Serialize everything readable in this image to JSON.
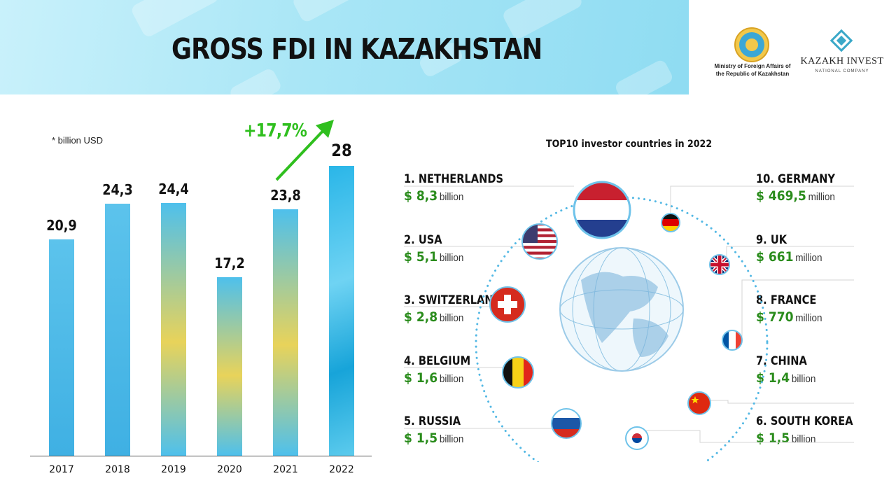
{
  "header": {
    "title": "GROSS FDI IN KAZAKHSTAN",
    "ministry_line1": "Ministry of Foreign Affairs of",
    "ministry_line2": "the Republic of Kazakhstan",
    "partner_name": "KAZAKH INVEST",
    "partner_sub": "NATIONAL COMPANY"
  },
  "chart_data": [
    {
      "type": "bar",
      "unit_note": "* billion USD",
      "categories": [
        "2017",
        "2018",
        "2019",
        "2020",
        "2021",
        "2022"
      ],
      "values": [
        20.9,
        24.3,
        24.4,
        17.2,
        23.8,
        28
      ],
      "value_labels": [
        "20,9",
        "24,3",
        "24,4",
        "17,2",
        "23,8",
        "28"
      ],
      "growth_label": "+17,7%",
      "colors": {
        "bar": "#4fb8e6",
        "growth": "#2fbf1e"
      }
    },
    {
      "type": "table",
      "title": "TOP10 investor countries in 2022",
      "investors": [
        {
          "name": "1. NETHERLANDS",
          "amount": "$ 8,3",
          "unit": "billion"
        },
        {
          "name": "2. USA",
          "amount": "$ 5,1",
          "unit": "billion"
        },
        {
          "name": "3. SWITZERLAND",
          "amount": "$ 2,8",
          "unit": "billion"
        },
        {
          "name": "4. BELGIUM",
          "amount": "$ 1,6",
          "unit": "billion"
        },
        {
          "name": "5. RUSSIA",
          "amount": "$ 1,5",
          "unit": "billion"
        },
        {
          "name": "6. SOUTH KOREA",
          "amount": "$ 1,5",
          "unit": "billion"
        },
        {
          "name": "7. CHINA",
          "amount": "$ 1,4",
          "unit": "billion"
        },
        {
          "name": "8. FRANCE",
          "amount": "$ 770",
          "unit": "million"
        },
        {
          "name": "9. UK",
          "amount": "$ 661",
          "unit": "million"
        },
        {
          "name": "10. GERMANY",
          "amount": "$ 469,5",
          "unit": "million"
        }
      ]
    }
  ],
  "flags": [
    "netherlands-flag-icon",
    "usa-flag-icon",
    "switzerland-flag-icon",
    "belgium-flag-icon",
    "russia-flag-icon",
    "south-korea-flag-icon",
    "china-flag-icon",
    "france-flag-icon",
    "uk-flag-icon",
    "germany-flag-icon",
    "globe-icon"
  ]
}
